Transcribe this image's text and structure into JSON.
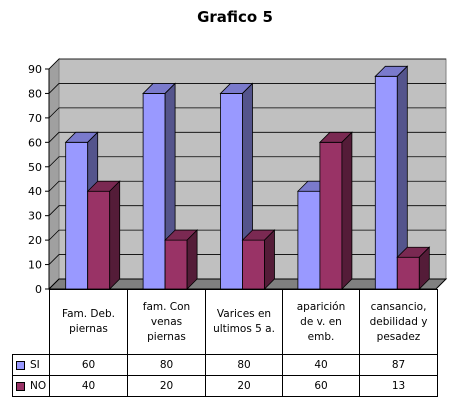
{
  "chart_data": {
    "type": "bar",
    "title": "Grafico 5",
    "categories": [
      [
        "Fam. Deb.",
        "piernas"
      ],
      [
        "fam. Con",
        "venas",
        "piernas"
      ],
      [
        "Varices en",
        "ultimos 5 a."
      ],
      [
        "aparición",
        "de v. en",
        "emb."
      ],
      [
        "cansancio,",
        "debilidad y",
        "pesadez"
      ]
    ],
    "series": [
      {
        "name": "SI",
        "values": [
          60,
          80,
          80,
          40,
          87
        ],
        "color": "#9999ff"
      },
      {
        "name": "NO",
        "values": [
          40,
          20,
          20,
          60,
          13
        ],
        "color": "#993366"
      }
    ],
    "ylim": [
      0,
      90
    ],
    "yticks": [
      0,
      10,
      20,
      30,
      40,
      50,
      60,
      70,
      80,
      90
    ],
    "grid": true,
    "legend": "data-table",
    "xlabel": "",
    "ylabel": ""
  }
}
